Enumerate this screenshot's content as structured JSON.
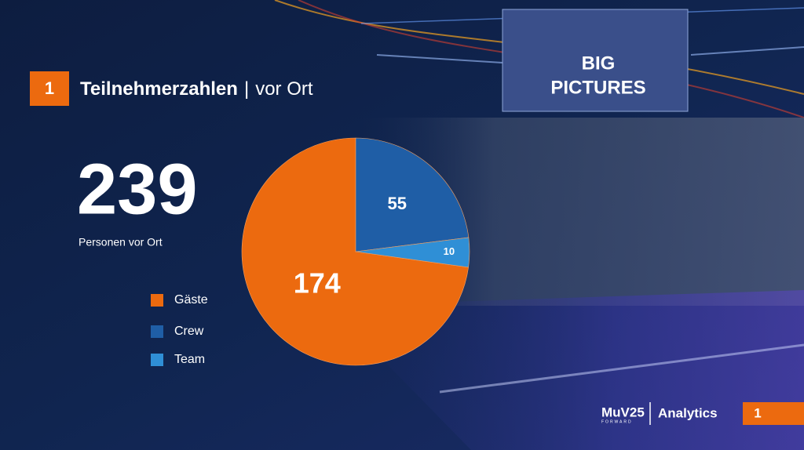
{
  "header": {
    "number": "1",
    "title": "Teilnehmerzahlen",
    "separator": "|",
    "subtitle": "vor Ort"
  },
  "total": {
    "value": 239,
    "label": "Personen vor Ort"
  },
  "background": {
    "screen_text": [
      "BIG",
      "PICTURES"
    ]
  },
  "chart_data": {
    "type": "pie",
    "categories": [
      "Gäste",
      "Crew",
      "Team"
    ],
    "values": [
      174,
      55,
      10
    ],
    "colors": [
      "#ec6a0f",
      "#1f5ea6",
      "#2f8fd6"
    ]
  },
  "footer": {
    "brand": "MuV25",
    "brand_sub": "FORWARD",
    "section": "Analytics",
    "page": "1"
  }
}
